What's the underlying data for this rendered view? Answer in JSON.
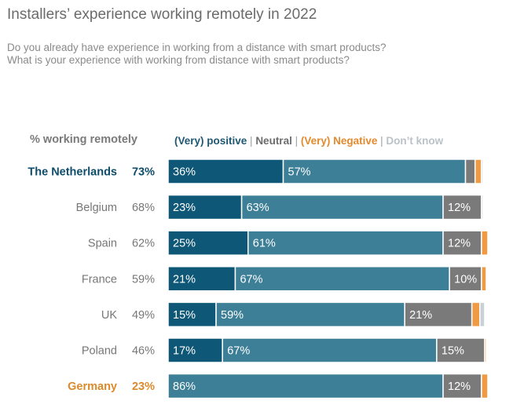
{
  "title": "Installers’ experience working remotely in 2022",
  "subtitle_lines": [
    "Do you already have experience in working from a distance with smart products?",
    "What is your experience with working from distance with smart products?"
  ],
  "column_header": "% working remotely",
  "legend": {
    "positive": "(Very) positive",
    "neutral": "Neutral",
    "negative": "(Very) Negative",
    "dont_know": "Don’t know",
    "separator": " | "
  },
  "colors": {
    "very_positive": "#0e5777",
    "positive": "#3d7f97",
    "neutral": "#7a7a7a",
    "negative": "#ef9a45",
    "dont_know": "#c9d1d6",
    "netherlands_label": "#0e4d6c",
    "germany_label": "#dc8a2a",
    "default_label": "#777777"
  },
  "chart_data": {
    "type": "bar",
    "orientation": "horizontal",
    "stacked": true,
    "title": "Installers’ experience working remotely in 2022",
    "categories": [
      "The Netherlands",
      "Belgium",
      "Spain",
      "France",
      "UK",
      "Poland",
      "Germany"
    ],
    "working_remotely": [
      "73%",
      "68%",
      "62%",
      "59%",
      "49%",
      "46%",
      "23%"
    ],
    "series": [
      {
        "name": "(Very) positive",
        "values": [
          36,
          23,
          25,
          21,
          15,
          17,
          0
        ],
        "labels": [
          "36%",
          "23%",
          "25%",
          "21%",
          "15%",
          "17%",
          ""
        ]
      },
      {
        "name": "(Very) positive",
        "values": [
          57,
          63,
          61,
          67,
          59,
          67,
          86
        ],
        "labels": [
          "57%",
          "63%",
          "61%",
          "67%",
          "59%",
          "67%",
          "86%"
        ]
      },
      {
        "name": "Neutral",
        "values": [
          3,
          12,
          12,
          10,
          21,
          15,
          12
        ],
        "labels": [
          "",
          "12%",
          "12%",
          "10%",
          "21%",
          "15%",
          "12%"
        ]
      },
      {
        "name": "(Very) Negative",
        "values": [
          2,
          0,
          2,
          1.5,
          2.5,
          0.5,
          2
        ],
        "labels": [
          "",
          "",
          "",
          "",
          "",
          "",
          ""
        ]
      },
      {
        "name": "Don’t know",
        "values": [
          0.5,
          0.5,
          0,
          0,
          1.5,
          0,
          0
        ],
        "labels": [
          "",
          "",
          "",
          "",
          "",
          "",
          ""
        ]
      }
    ],
    "xlim": [
      0,
      100
    ]
  }
}
